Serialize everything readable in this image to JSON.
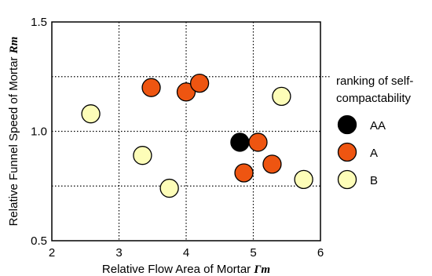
{
  "chart_data": {
    "type": "scatter",
    "xlabel": "Relative Flow Area of Mortar",
    "xlabel_symbol": "Γm",
    "ylabel": "Relative Funnel Speed of Mortar",
    "ylabel_symbol": "Rm",
    "xlim": [
      2,
      6
    ],
    "ylim": [
      0.5,
      1.5
    ],
    "x_ticks": [
      "2",
      "3",
      "4",
      "5",
      "6"
    ],
    "y_ticks": [
      "0.5",
      "1.0",
      "1.5"
    ],
    "grid": "dotted at x=3,4,5 and y=0.75,1.0,1.25",
    "legend_title": "ranking of self-compactability",
    "legend_title_lines": [
      "ranking of self-",
      "compactability"
    ],
    "legend_position": "right",
    "series": [
      {
        "name": "AA",
        "color": "#000000",
        "points": [
          [
            4.8,
            0.95
          ]
        ]
      },
      {
        "name": "A",
        "color": "#ee5511",
        "points": [
          [
            3.48,
            1.2
          ],
          [
            4.0,
            1.18
          ],
          [
            4.2,
            1.22
          ],
          [
            5.07,
            0.95
          ],
          [
            4.86,
            0.81
          ],
          [
            5.28,
            0.85
          ]
        ]
      },
      {
        "name": "B",
        "color": "#fdfdb8",
        "points": [
          [
            2.58,
            1.08
          ],
          [
            3.35,
            0.89
          ],
          [
            3.75,
            0.74
          ],
          [
            5.42,
            1.16
          ],
          [
            5.75,
            0.78
          ]
        ]
      }
    ]
  }
}
